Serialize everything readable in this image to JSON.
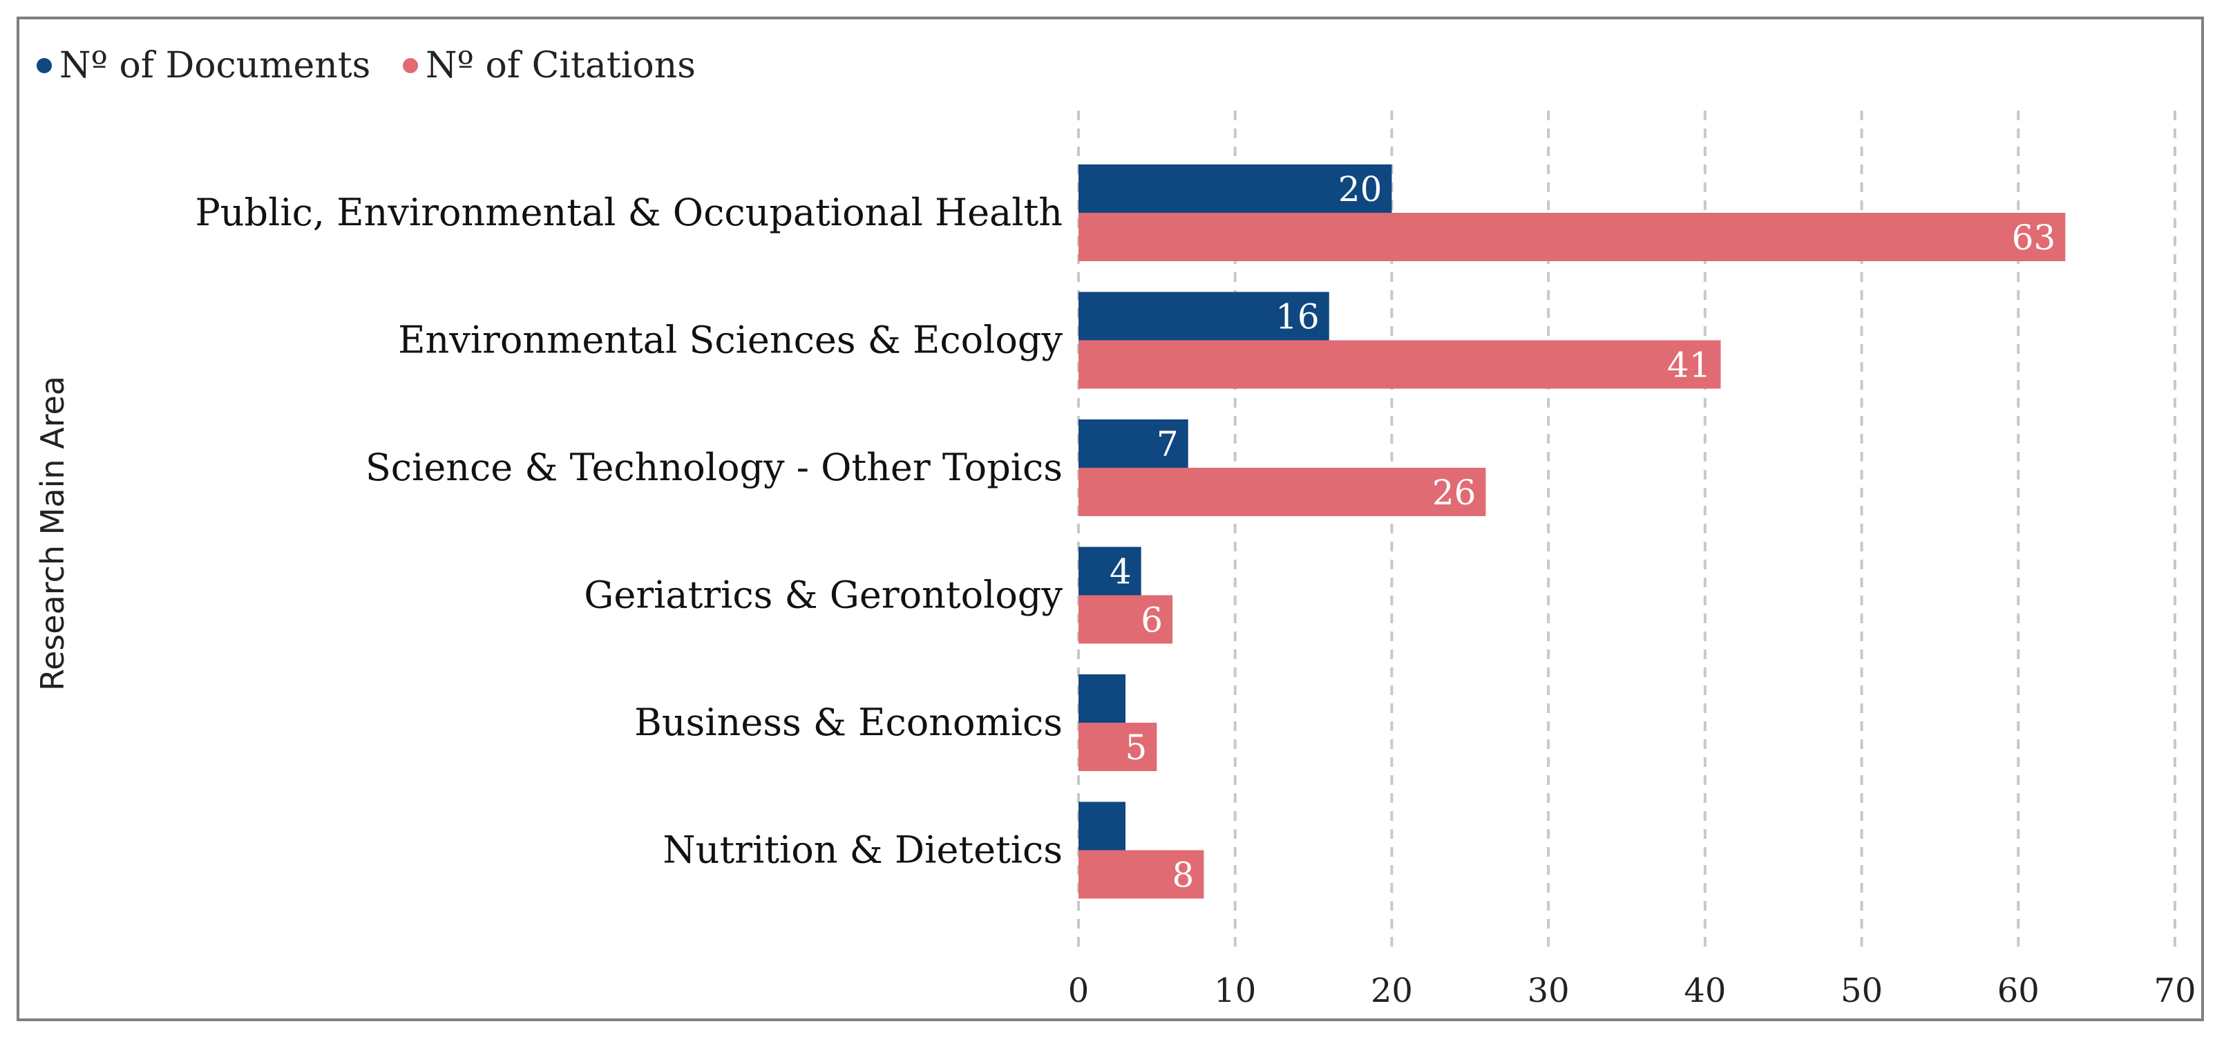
{
  "chart_data": {
    "type": "bar",
    "orientation": "horizontal",
    "categories": [
      "Public, Environmental & Occupational Health",
      "Environmental Sciences & Ecology",
      "Science & Technology - Other Topics",
      "Geriatrics & Gerontology",
      "Business & Economics",
      "Nutrition & Dietetics"
    ],
    "series": [
      {
        "name": "Nº of Documents",
        "color": "#0f4780",
        "values": [
          20,
          16,
          7,
          4,
          3,
          3
        ],
        "data_labels": [
          "20",
          "16",
          "7",
          "4",
          "",
          ""
        ]
      },
      {
        "name": "Nº of Citations",
        "color": "#e06b73",
        "values": [
          63,
          41,
          26,
          6,
          5,
          8
        ],
        "data_labels": [
          "63",
          "41",
          "26",
          "6",
          "5",
          "8"
        ]
      }
    ],
    "xlim": [
      0,
      70
    ],
    "xticks": [
      "0",
      "10",
      "20",
      "30",
      "40",
      "50",
      "60",
      "70"
    ],
    "xlabel": "",
    "ylabel": "Research Main Area",
    "grid": "vertical dashed",
    "legend_position": "top-left"
  }
}
